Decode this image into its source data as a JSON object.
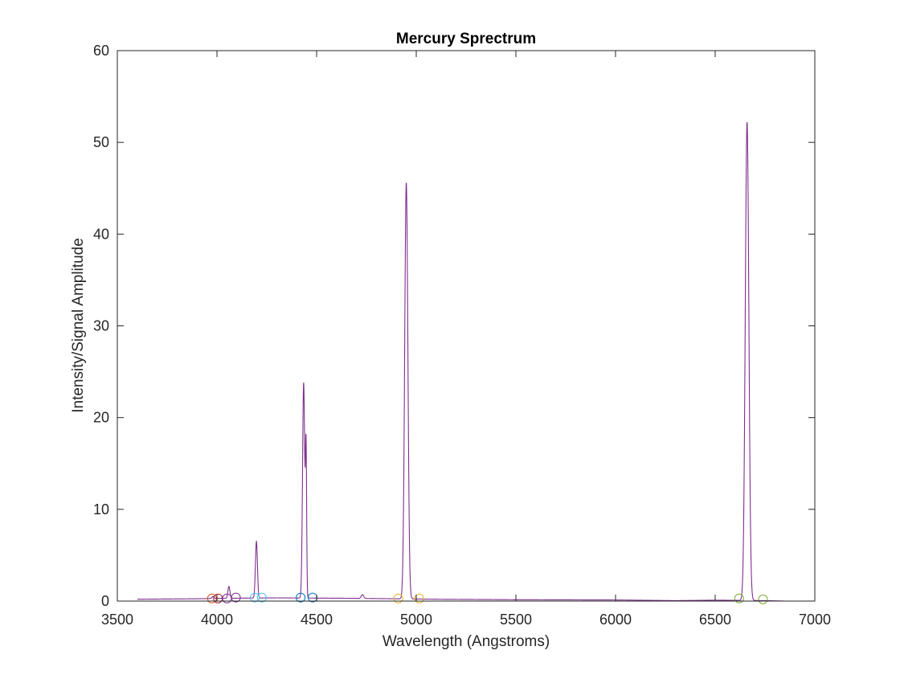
{
  "chart_data": {
    "type": "line",
    "title": "Mercury Sprectrum",
    "xlabel": "Wavelength (Angstroms)",
    "ylabel": "Intensity/Signal Amplitude",
    "xlim": [
      3500,
      7000
    ],
    "ylim": [
      0,
      60
    ],
    "xticks": [
      3500,
      4000,
      4500,
      5000,
      5500,
      6000,
      6500,
      7000
    ],
    "yticks": [
      0,
      10,
      20,
      30,
      40,
      50,
      60
    ],
    "grid": false,
    "legend": "none",
    "series": [
      {
        "color": "#7E2F8E",
        "baseline_points": [
          [
            3600,
            0.2
          ],
          [
            3900,
            0.25
          ],
          [
            4000,
            0.3
          ],
          [
            4300,
            0.35
          ],
          [
            4700,
            0.3
          ],
          [
            5100,
            0.2
          ],
          [
            5500,
            0.15
          ],
          [
            6000,
            0.12
          ],
          [
            6300,
            0.05
          ],
          [
            6500,
            0.1
          ],
          [
            6750,
            0.05
          ],
          [
            6850,
            0.0
          ]
        ],
        "peaks": [
          {
            "x": 3980,
            "y": 0.5,
            "width": 5
          },
          {
            "x": 4060,
            "y": 1.6,
            "width": 5
          },
          {
            "x": 4198,
            "y": 6.5,
            "width": 5
          },
          {
            "x": 4435,
            "y": 23.8,
            "width": 5.5
          },
          {
            "x": 4447,
            "y": 15.8,
            "width": 3
          },
          {
            "x": 4730,
            "y": 0.7,
            "width": 6
          },
          {
            "x": 4950,
            "y": 45.6,
            "width": 8
          },
          {
            "x": 6660,
            "y": 52.2,
            "width": 9
          }
        ]
      }
    ],
    "markers": [
      {
        "x": 3975,
        "y": 0.2,
        "color": "#D95319"
      },
      {
        "x": 4005,
        "y": 0.2,
        "color": "#A2142F"
      },
      {
        "x": 4050,
        "y": 0.2,
        "color": "#7E2F8E"
      },
      {
        "x": 4095,
        "y": 0.3,
        "color": "#7E2F8E"
      },
      {
        "x": 4190,
        "y": 0.3,
        "color": "#4DBEEE"
      },
      {
        "x": 4225,
        "y": 0.3,
        "color": "#4DBEEE"
      },
      {
        "x": 4420,
        "y": 0.3,
        "color": "#0072BD"
      },
      {
        "x": 4480,
        "y": 0.3,
        "color": "#0072BD"
      },
      {
        "x": 4910,
        "y": 0.2,
        "color": "#EDB120"
      },
      {
        "x": 5015,
        "y": 0.2,
        "color": "#EDB120"
      },
      {
        "x": 6620,
        "y": 0.2,
        "color": "#77AC30"
      },
      {
        "x": 6740,
        "y": 0.1,
        "color": "#77AC30"
      }
    ]
  }
}
